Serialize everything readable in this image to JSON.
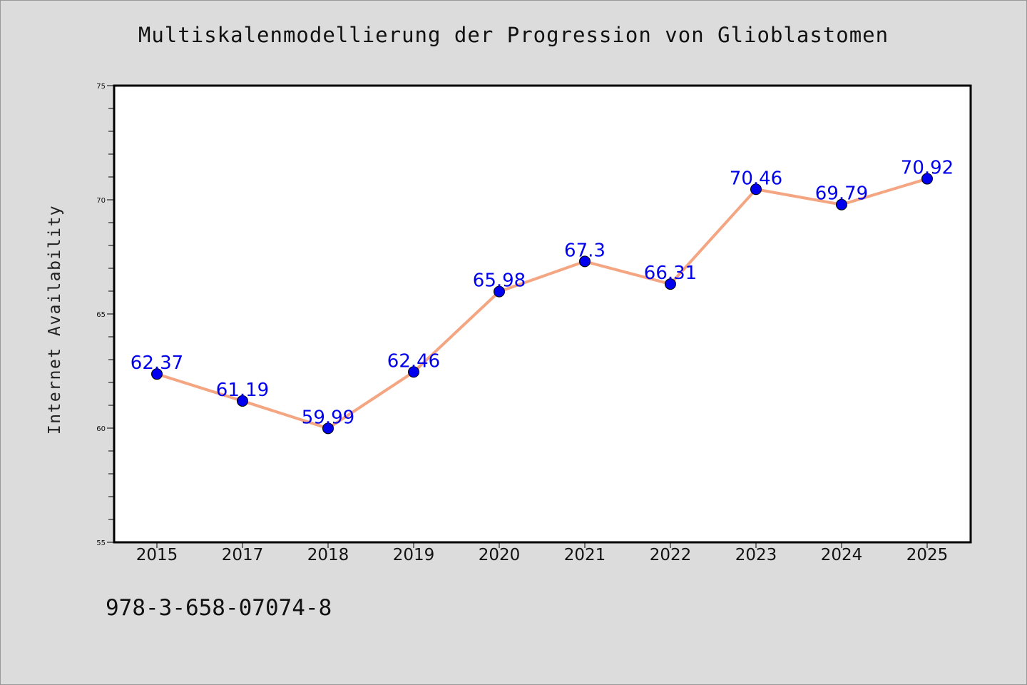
{
  "title": "Multiskalenmodellierung der Progression von Glioblastomen",
  "footer_text": "978-3-658-07074-8",
  "colors": {
    "background": "#dcdcdc",
    "plot_background": "#ffffff",
    "line": "#f4a582",
    "marker": "#0000ee",
    "data_label": "#0000ee"
  },
  "chart_data": {
    "type": "line",
    "title": "Multiskalenmodellierung der Progression von Glioblastomen",
    "xlabel": "",
    "ylabel": "Internet Availability",
    "x": [
      "2015",
      "2017",
      "2018",
      "2019",
      "2020",
      "2021",
      "2022",
      "2023",
      "2024",
      "2025"
    ],
    "series": [
      {
        "values": [
          62.37,
          61.19,
          59.99,
          62.46,
          65.98,
          67.3,
          66.31,
          70.46,
          69.79,
          70.92
        ],
        "data_labels": [
          "62.37",
          "61.19",
          "59.99",
          "62.46",
          "65.98",
          "67.3",
          "66.31",
          "70.46",
          "69.79",
          "70.92"
        ],
        "marker": "circle"
      }
    ],
    "ylim": [
      55,
      75
    ],
    "yticks": [
      55,
      60,
      65,
      70,
      75
    ],
    "grid": false,
    "legend": "none"
  }
}
